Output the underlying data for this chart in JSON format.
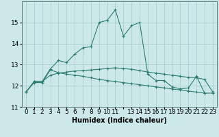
{
  "xlabel": "Humidex (Indice chaleur)",
  "x_labels": [
    "0",
    "1",
    "2",
    "3",
    "4",
    "5",
    "6",
    "7",
    "8",
    "9",
    "10",
    "11",
    "",
    "13",
    "14",
    "15",
    "16",
    "17",
    "18",
    "19",
    "20",
    "21",
    "22",
    "23"
  ],
  "x_values": [
    0,
    1,
    2,
    3,
    4,
    5,
    6,
    7,
    8,
    9,
    10,
    11,
    12,
    13,
    14,
    15,
    16,
    17,
    18,
    19,
    20,
    21,
    22,
    23
  ],
  "line1_y": [
    11.7,
    12.2,
    12.2,
    12.8,
    13.2,
    13.1,
    13.5,
    13.8,
    13.85,
    15.0,
    15.1,
    15.6,
    14.35,
    14.85,
    15.0,
    12.55,
    12.25,
    12.25,
    11.95,
    11.85,
    11.9,
    12.45,
    11.65,
    null
  ],
  "line2_y": [
    11.7,
    12.2,
    12.2,
    12.5,
    12.6,
    12.65,
    12.7,
    12.72,
    12.75,
    12.78,
    12.82,
    12.85,
    12.82,
    12.78,
    12.72,
    12.65,
    12.6,
    12.55,
    12.5,
    12.45,
    12.4,
    12.38,
    12.3,
    11.7
  ],
  "line3_y": [
    11.7,
    12.15,
    12.15,
    12.75,
    12.62,
    12.55,
    12.5,
    12.45,
    12.38,
    12.3,
    12.25,
    12.2,
    12.15,
    12.1,
    12.05,
    12.0,
    11.95,
    11.9,
    11.85,
    11.8,
    11.75,
    11.7,
    11.65,
    11.65
  ],
  "line_color": "#2a7d6e",
  "bg_color": "#cce8e8",
  "grid_color": "#aacfcf",
  "ylim": [
    11,
    16
  ],
  "yticks": [
    11,
    12,
    13,
    14,
    15
  ],
  "label_fontsize": 7,
  "tick_fontsize": 6.5
}
